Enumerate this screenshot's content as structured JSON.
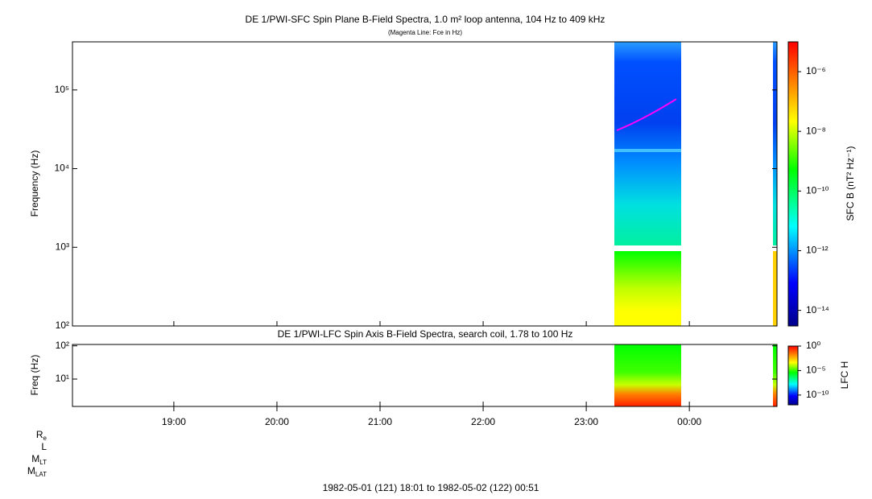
{
  "chart_data": [
    {
      "type": "spectrogram",
      "title": "DE 1/PWI-SFC  Spin Plane B-Field Spectra, 1.0 m² loop antenna, 104 Hz to 409 kHz",
      "subtitle": "(Magenta Line: Fce in Hz)",
      "y_label": "Frequency (Hz)",
      "colorbar_label": "SFC B (nT² Hz⁻¹)",
      "log_y": true,
      "ylim": [
        100,
        409000
      ],
      "yticks": [
        {
          "value": 100,
          "label": "10²"
        },
        {
          "value": 1000,
          "label": "10³"
        },
        {
          "value": 10000,
          "label": "10⁴"
        },
        {
          "value": 100000,
          "label": "10⁵"
        }
      ],
      "xlim": [
        18.0167,
        24.85
      ],
      "log_z": true,
      "zlim": [
        3e-15,
        1e-05
      ],
      "zticks": [
        {
          "value": 1e-06,
          "label": "10⁻⁶"
        },
        {
          "value": 1e-08,
          "label": "10⁻⁸"
        },
        {
          "value": 1e-10,
          "label": "10⁻¹⁰"
        },
        {
          "value": 1e-12,
          "label": "10⁻¹²"
        },
        {
          "value": 1e-14,
          "label": "10⁻¹⁴"
        }
      ]
    },
    {
      "type": "spectrogram",
      "title": "DE 1/PWI-LFC  Spin Axis B-Field Spectra, search coil, 1.78 to 100 Hz",
      "y_label": "Freq (Hz)",
      "colorbar_label": "LFC H",
      "log_y": true,
      "ylim": [
        1.5,
        110
      ],
      "yticks": [
        {
          "value": 10,
          "label": "10¹"
        },
        {
          "value": 100,
          "label": "10²"
        }
      ],
      "xlim": [
        18.0167,
        24.85
      ],
      "xticks": [
        {
          "value": 19,
          "label": "19:00"
        },
        {
          "value": 20,
          "label": "20:00"
        },
        {
          "value": 21,
          "label": "21:00"
        },
        {
          "value": 22,
          "label": "22:00"
        },
        {
          "value": 23,
          "label": "23:00"
        },
        {
          "value": 24,
          "label": "00:00"
        }
      ],
      "log_z": true,
      "zlim": [
        1e-12,
        1
      ],
      "zticks": [
        {
          "value": 1,
          "label": "10⁰"
        },
        {
          "value": 1e-05,
          "label": "10⁻⁵"
        },
        {
          "value": 1e-10,
          "label": "10⁻¹⁰"
        }
      ]
    }
  ],
  "ephemeris_labels": [
    {
      "main": "R",
      "sub": "e"
    },
    {
      "main": "L",
      "sub": ""
    },
    {
      "main": "M",
      "sub": "LT"
    },
    {
      "main": "M",
      "sub": "LAT"
    }
  ],
  "footer": "1982-05-01 (121) 18:01 to 1982-05-02 (122) 00:51"
}
